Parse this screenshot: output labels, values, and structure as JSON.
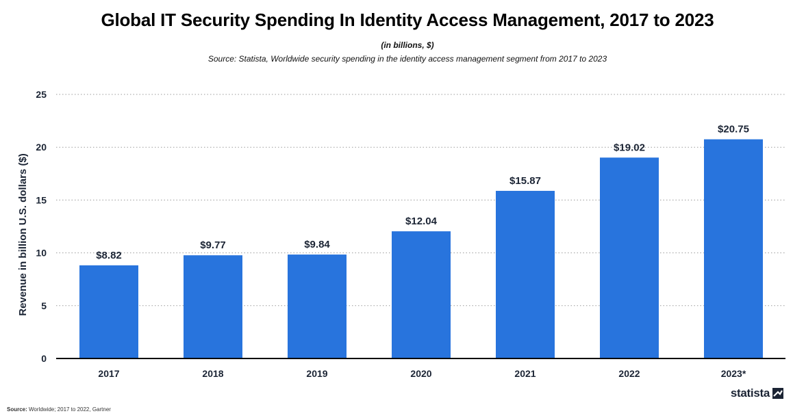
{
  "chart_data": {
    "type": "bar",
    "title": "Global IT Security Spending In Identity Access Management, 2017 to 2023",
    "subtitle": "(in billions, $)",
    "source_note": "Source: Statista, Worldwide security spending in the identity access management segment from 2017 to 2023",
    "ylabel": "Revenue in billion U.S. dollars ($)",
    "xlabel": "",
    "categories": [
      "2017",
      "2018",
      "2019",
      "2020",
      "2021",
      "2022",
      "2023*"
    ],
    "values": [
      8.82,
      9.77,
      9.84,
      12.04,
      15.87,
      19.02,
      20.75
    ],
    "data_labels": [
      "$8.82",
      "$9.77",
      "$9.84",
      "$12.04",
      "$15.87",
      "$19.02",
      "$20.75"
    ],
    "yticks": [
      0,
      5,
      10,
      15,
      20,
      25
    ],
    "ylim": [
      0,
      25
    ],
    "grid": true,
    "legend": "none",
    "bar_color": "#2874dd"
  },
  "footer": {
    "source_label": "Source:",
    "source_text": " Worldwide; 2017 to 2022, Gartner",
    "brand": "statista"
  },
  "colors": {
    "bar": "#2874dd",
    "grid": "#999999",
    "axis": "#000000",
    "text": "#1b2434"
  }
}
